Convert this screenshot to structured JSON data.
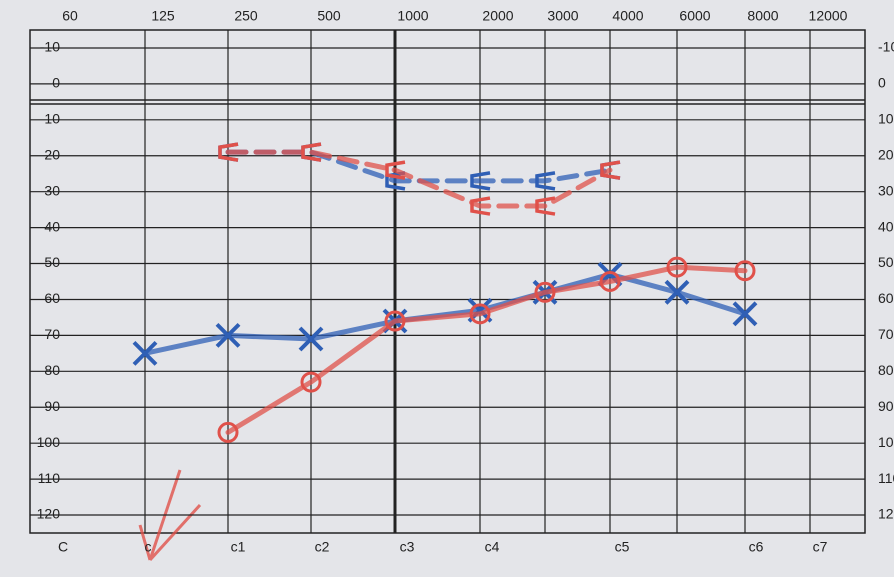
{
  "chart_data": {
    "type": "line",
    "categories": [
      "60",
      "125",
      "250",
      "500",
      "1000",
      "2000",
      "3000",
      "4000",
      "6000",
      "8000",
      "12000"
    ],
    "bottom_labels": [
      "C",
      "c",
      "c1",
      "c2",
      "c3",
      "c4",
      "c5",
      "c6",
      "c7"
    ],
    "ylim": [
      -15,
      125
    ],
    "y_reversed": true,
    "yticks": [
      -10,
      0,
      10,
      20,
      30,
      40,
      50,
      60,
      70,
      80,
      90,
      100,
      110,
      120
    ],
    "grid": true,
    "series": [
      {
        "color": "#2f5fb5",
        "style": "solid",
        "marker": "x",
        "values": [
          null,
          75,
          70,
          71,
          66,
          63,
          58,
          53,
          58,
          64,
          null
        ]
      },
      {
        "color": "#e0514a",
        "style": "solid",
        "marker": "o",
        "values": [
          null,
          null,
          97,
          83,
          66,
          64,
          58,
          55,
          51,
          52,
          null
        ]
      },
      {
        "color": "#2f5fb5",
        "style": "dashed",
        "marker": "bracket",
        "values": [
          null,
          null,
          19,
          19,
          27,
          27,
          27,
          24,
          null,
          null,
          null
        ]
      },
      {
        "color": "#e0514a",
        "style": "dashed",
        "marker": "bracket",
        "values": [
          null,
          null,
          19,
          19,
          24,
          34,
          34,
          24,
          null,
          null,
          null
        ]
      }
    ]
  }
}
